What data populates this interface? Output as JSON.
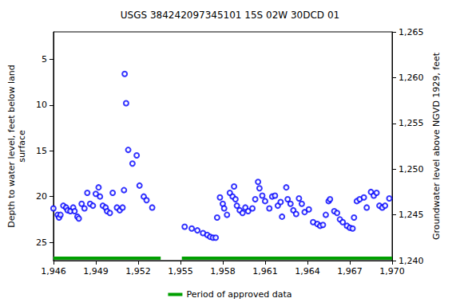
{
  "chart_data": {
    "type": "scatter",
    "title": "USGS 384242097345101 15S 02W 30DCD 01",
    "y_label": "Depth to water level, feet below land\nsurface",
    "y2_label": "Groundwater level above NGVD 1929, feet",
    "x": [
      1946.0,
      1946.3,
      1946.4,
      1946.5,
      1946.7,
      1946.9,
      1947.0,
      1947.2,
      1947.4,
      1947.5,
      1947.7,
      1947.8,
      1948.0,
      1948.2,
      1948.4,
      1948.6,
      1948.8,
      1949.0,
      1949.2,
      1949.3,
      1949.5,
      1949.7,
      1949.8,
      1950.0,
      1950.2,
      1950.5,
      1950.7,
      1950.9,
      1951.0,
      1951.05,
      1951.15,
      1951.3,
      1951.6,
      1951.9,
      1952.1,
      1952.4,
      1952.6,
      1953.0,
      1955.3,
      1955.8,
      1956.2,
      1956.6,
      1956.9,
      1957.1,
      1957.3,
      1957.5,
      1957.6,
      1957.8,
      1958.0,
      1958.1,
      1958.3,
      1958.5,
      1958.7,
      1958.8,
      1958.9,
      1959.0,
      1959.2,
      1959.4,
      1959.6,
      1959.8,
      1960.1,
      1960.3,
      1960.5,
      1960.6,
      1960.8,
      1961.0,
      1961.3,
      1961.5,
      1961.7,
      1961.9,
      1962.1,
      1962.2,
      1962.5,
      1962.6,
      1962.8,
      1963.0,
      1963.2,
      1963.4,
      1963.6,
      1963.8,
      1964.1,
      1964.4,
      1964.7,
      1964.9,
      1965.1,
      1965.3,
      1965.5,
      1965.6,
      1965.9,
      1966.1,
      1966.3,
      1966.5,
      1966.8,
      1967.0,
      1967.2,
      1967.3,
      1967.5,
      1967.7,
      1968.0,
      1968.2,
      1968.5,
      1968.7,
      1968.9,
      1969.1,
      1969.3,
      1969.5,
      1969.8
    ],
    "values": [
      21.3,
      22.0,
      22.3,
      22.0,
      21.0,
      21.2,
      21.5,
      21.6,
      21.2,
      21.6,
      22.2,
      22.4,
      20.8,
      21.3,
      19.6,
      20.8,
      21.0,
      19.7,
      19.0,
      20.0,
      21.0,
      21.2,
      21.6,
      21.8,
      19.6,
      21.2,
      21.5,
      21.2,
      19.3,
      6.6,
      9.8,
      14.9,
      16.4,
      15.5,
      18.8,
      20.0,
      20.4,
      21.2,
      23.3,
      23.5,
      23.7,
      24.0,
      24.2,
      24.4,
      24.5,
      24.5,
      22.3,
      20.1,
      20.8,
      21.3,
      22.0,
      19.6,
      20.0,
      18.9,
      20.3,
      21.0,
      21.5,
      21.8,
      21.2,
      21.6,
      21.3,
      20.3,
      18.4,
      19.1,
      19.9,
      20.5,
      21.3,
      20.0,
      19.9,
      21.0,
      20.6,
      22.2,
      19.0,
      20.3,
      20.8,
      21.5,
      21.9,
      20.2,
      20.8,
      21.7,
      21.4,
      22.8,
      23.0,
      23.2,
      23.1,
      22.0,
      20.5,
      20.3,
      21.6,
      21.8,
      22.5,
      22.8,
      23.2,
      23.4,
      23.5,
      22.3,
      20.5,
      20.3,
      20.1,
      21.2,
      19.5,
      19.9,
      19.6,
      21.0,
      21.2,
      21.0,
      20.2
    ],
    "color": "#0000ff",
    "marker": "circle",
    "xlim": [
      1946,
      1970
    ],
    "xticks": [
      1946,
      1949,
      1952,
      1955,
      1958,
      1961,
      1964,
      1967,
      1970
    ],
    "ylim": [
      2,
      27
    ],
    "yticks": [
      5,
      10,
      15,
      20,
      25
    ],
    "y2lim": [
      1240,
      1265
    ],
    "y2ticks": [
      1240,
      1245,
      1250,
      1255,
      1260,
      1265
    ],
    "approved_periods": {
      "name": "Period of approved data",
      "color": "#00a000",
      "ranges": [
        [
          1946,
          1953.6
        ],
        [
          1955.1,
          1970
        ]
      ]
    },
    "legend": "bottom",
    "grid": false
  }
}
